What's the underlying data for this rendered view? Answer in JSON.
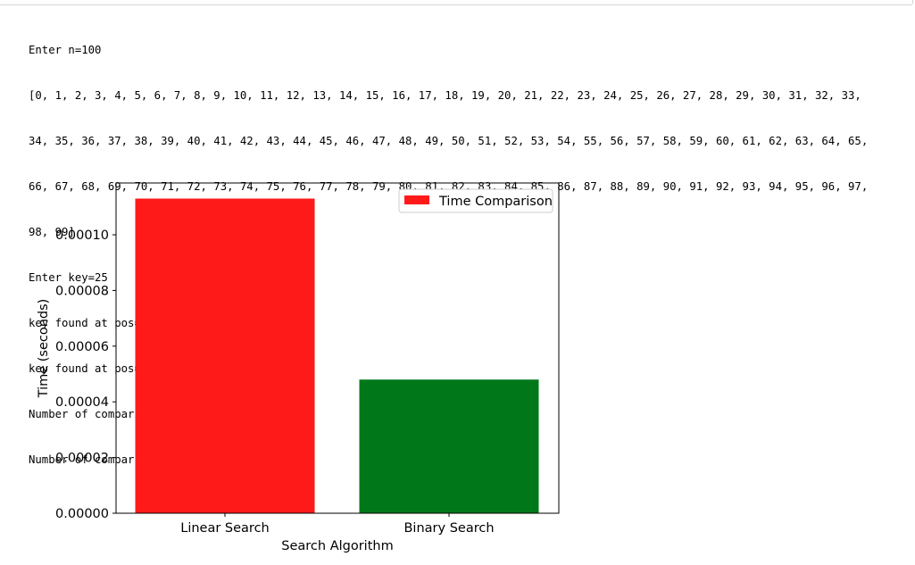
{
  "output": {
    "lines": [
      "Enter n=100",
      "[0, 1, 2, 3, 4, 5, 6, 7, 8, 9, 10, 11, 12, 13, 14, 15, 16, 17, 18, 19, 20, 21, 22, 23, 24, 25, 26, 27, 28, 29, 30, 31, 32, 33,",
      "34, 35, 36, 37, 38, 39, 40, 41, 42, 43, 44, 45, 46, 47, 48, 49, 50, 51, 52, 53, 54, 55, 56, 57, 58, 59, 60, 61, 62, 63, 64, 65,",
      "66, 67, 68, 69, 70, 71, 72, 73, 74, 75, 76, 77, 78, 79, 80, 81, 82, 83, 84, 85, 86, 87, 88, 89, 90, 91, 92, 93, 94, 95, 96, 97,",
      "98, 99]",
      "Enter key=25",
      "key found at pos= 25",
      "key found at pos= 25",
      "Number of comparision Linary search = 26",
      "Number of comparision Binary search = 6"
    ]
  },
  "chart_data": {
    "type": "bar",
    "categories": [
      "Linear Search",
      "Binary Search"
    ],
    "values": [
      0.000113,
      4.8e-05
    ],
    "colors": [
      "#ff1a1a",
      "#00781a"
    ],
    "title": "",
    "xlabel": "Search Algorithm",
    "ylabel": "Time (seconds)",
    "ylim": [
      0,
      0.0001186
    ],
    "yticks": [
      0.0,
      2e-05,
      4e-05,
      6e-05,
      8e-05,
      0.0001
    ],
    "ytick_labels": [
      "0.00000",
      "0.00002",
      "0.00004",
      "0.00006",
      "0.00008",
      "0.00010"
    ],
    "grid": false,
    "legend": {
      "placement": "top-right",
      "entries": [
        {
          "label": "Time Comparison",
          "color": "#ff1a1a"
        }
      ]
    }
  }
}
